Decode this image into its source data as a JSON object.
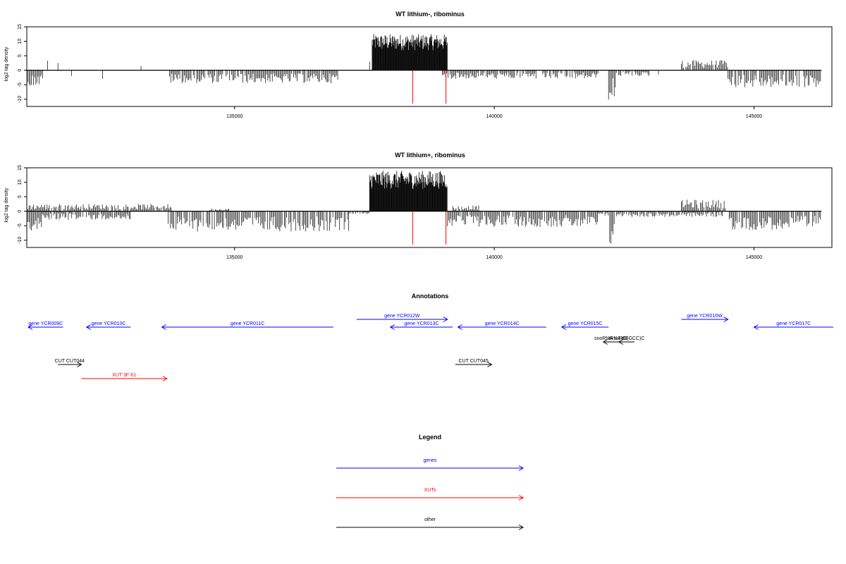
{
  "tracks": [
    {
      "title": "WT lithium-, ribominus",
      "ylabel": "log2 tag density",
      "xlim": [
        131000,
        146500
      ],
      "ylim": [
        -12.5,
        15
      ],
      "yticks": [
        -10,
        -5,
        0,
        5,
        10,
        15
      ],
      "xticks": [
        135000,
        140000,
        145000
      ],
      "marker_lines": [
        138430,
        139070
      ],
      "marker_color": "#ff0000",
      "positive_segments": [
        {
          "start": 131400,
          "end": 131420,
          "value": 3.3
        },
        {
          "start": 131600,
          "end": 131620,
          "value": 2.5
        },
        {
          "start": 133200,
          "end": 133220,
          "value": 1.5
        },
        {
          "start": 137600,
          "end": 137620,
          "value": 3.0
        },
        {
          "start": 137650,
          "end": 139100,
          "value": 12.5,
          "density": "dense"
        },
        {
          "start": 143600,
          "end": 144500,
          "value": 3.5
        }
      ],
      "negative_segments": [
        {
          "start": 131000,
          "end": 131330,
          "value": -5.5
        },
        {
          "start": 131860,
          "end": 131880,
          "value": -2.0
        },
        {
          "start": 132460,
          "end": 132480,
          "value": -3.0
        },
        {
          "start": 133750,
          "end": 137000,
          "value": -4.5
        },
        {
          "start": 139000,
          "end": 142000,
          "value": -3.0
        },
        {
          "start": 142200,
          "end": 142350,
          "value": -10.5
        },
        {
          "start": 142350,
          "end": 143000,
          "value": -2.0
        },
        {
          "start": 143160,
          "end": 143180,
          "value": -1.5
        },
        {
          "start": 144500,
          "end": 146300,
          "value": -6.0
        }
      ]
    },
    {
      "title": "WT lithium+, ribominus",
      "ylabel": "log2 tag density",
      "xlim": [
        131000,
        146500
      ],
      "ylim": [
        -12.5,
        15
      ],
      "yticks": [
        -10,
        -5,
        0,
        5,
        10,
        15
      ],
      "xticks": [
        135000,
        140000,
        145000
      ],
      "marker_lines": [
        138430,
        139070
      ],
      "marker_color": "#ff0000",
      "positive_segments": [
        {
          "start": 131000,
          "end": 133800,
          "value": 2.5
        },
        {
          "start": 134500,
          "end": 134900,
          "value": 1.0
        },
        {
          "start": 137600,
          "end": 139100,
          "value": 14.0,
          "density": "dense"
        },
        {
          "start": 139200,
          "end": 139700,
          "value": 2.0
        },
        {
          "start": 143600,
          "end": 144500,
          "value": 4.0
        }
      ],
      "negative_segments": [
        {
          "start": 131000,
          "end": 131300,
          "value": -7.0
        },
        {
          "start": 131300,
          "end": 133000,
          "value": -3.0
        },
        {
          "start": 133700,
          "end": 137200,
          "value": -7.0
        },
        {
          "start": 137200,
          "end": 137600,
          "value": -1.0
        },
        {
          "start": 139100,
          "end": 142000,
          "value": -5.5
        },
        {
          "start": 142000,
          "end": 142200,
          "value": -2.0
        },
        {
          "start": 142200,
          "end": 142350,
          "value": -12.0
        },
        {
          "start": 142350,
          "end": 144400,
          "value": -2.0
        },
        {
          "start": 144500,
          "end": 146300,
          "value": -6.5
        }
      ]
    }
  ],
  "annotations": {
    "title": "Annotations",
    "items": [
      {
        "label": "gene YCR009C",
        "start": 130700,
        "end": 131700,
        "strand": "-",
        "color": "#0000ff",
        "row": 0
      },
      {
        "label": "gene YCR010C",
        "start": 132150,
        "end": 133000,
        "strand": "-",
        "color": "#0000ff",
        "row": 0
      },
      {
        "label": "gene YCR011C",
        "start": 133600,
        "end": 136900,
        "strand": "-",
        "color": "#0000ff",
        "row": 0
      },
      {
        "label": "gene YCR012W",
        "start": 137350,
        "end": 139100,
        "strand": "+",
        "color": "#0000ff",
        "row": -1
      },
      {
        "label": "gene YCR013C",
        "start": 138000,
        "end": 139200,
        "strand": "-",
        "color": "#0000ff",
        "row": 0
      },
      {
        "label": "gene YCR014C",
        "start": 139300,
        "end": 141000,
        "strand": "-",
        "color": "#0000ff",
        "row": 0
      },
      {
        "label": "gene YCR015C",
        "start": 141300,
        "end": 142200,
        "strand": "-",
        "color": "#0000ff",
        "row": 0
      },
      {
        "label": "gene YCR016W",
        "start": 143600,
        "end": 144500,
        "strand": "+",
        "color": "#0000ff",
        "row": -1
      },
      {
        "label": "gene YCR017C",
        "start": 145000,
        "end": 147000,
        "strand": "-",
        "color": "#0000ff",
        "row": 0
      },
      {
        "label": "tRNA tG(GCC)C",
        "start": 142400,
        "end": 142700,
        "strand": "-",
        "color": "#000000",
        "row": 1
      },
      {
        "label": "snoRNA snR65",
        "start": 142100,
        "end": 142400,
        "strand": "-",
        "color": "#000000",
        "row": 1
      },
      {
        "label": "CUT CUT044",
        "start": 131600,
        "end": 132050,
        "strand": "+",
        "color": "#000000",
        "row": 2
      },
      {
        "label": "CUT CUT045",
        "start": 139250,
        "end": 139950,
        "strand": "+",
        "color": "#000000",
        "row": 2
      },
      {
        "label": "XUT 3F-61",
        "start": 132050,
        "end": 133700,
        "strand": "+",
        "color": "#ff0000",
        "row": 3
      }
    ]
  },
  "legend": {
    "title": "Legend",
    "entries": [
      {
        "label": "genes",
        "color": "#0000ff"
      },
      {
        "label": "XUTs",
        "color": "#ff0000"
      },
      {
        "label": "other",
        "color": "#000000"
      }
    ]
  }
}
